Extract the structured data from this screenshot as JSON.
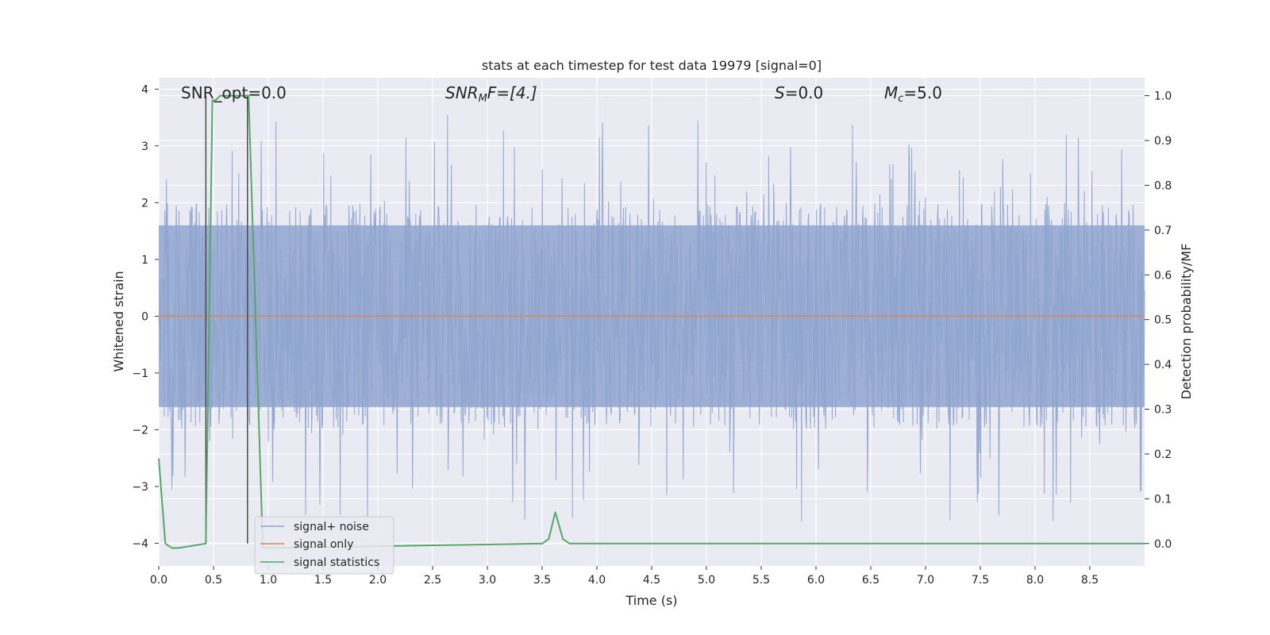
{
  "chart_data": {
    "type": "line",
    "title": "stats at each timestep for test data 19979 [signal=0]",
    "xlabel": "Time (s)",
    "ylabel_left": "Whitened strain",
    "ylabel_right": "Detection probability/MF",
    "xlim": [
      0.0,
      9.0
    ],
    "ylim_left": [
      -4.4,
      4.2
    ],
    "ylim_right": [
      -0.05,
      1.04
    ],
    "x_ticks": [
      "0.0",
      "0.5",
      "1.0",
      "1.5",
      "2.0",
      "2.5",
      "3.0",
      "3.5",
      "4.0",
      "4.5",
      "5.0",
      "5.5",
      "6.0",
      "6.5",
      "7.0",
      "7.5",
      "8.0",
      "8.5"
    ],
    "y_left_ticks": [
      "4",
      "3",
      "2",
      "1",
      "0",
      "−1",
      "−2",
      "−3",
      "−4"
    ],
    "y_right_ticks": [
      "1.0",
      "0.9",
      "0.8",
      "0.7",
      "0.6",
      "0.5",
      "0.4",
      "0.3",
      "0.2",
      "0.1",
      "0.0"
    ],
    "grid": true,
    "annotations": [
      {
        "prefix": "SNR_opt=0.0",
        "main": "",
        "sub": "",
        "suffix": ""
      },
      {
        "prefix": "",
        "main": "SNR",
        "sub": "M",
        "suffix": "F=[4.]"
      },
      {
        "prefix": "",
        "main": "S",
        "sub": "",
        "suffix": "=0.0"
      },
      {
        "prefix": "",
        "main": "M",
        "sub": "c",
        "suffix": "=5.0"
      }
    ],
    "legend_position": "lower-left",
    "series": [
      {
        "name": "signal+ noise",
        "color": "#8fa5cf",
        "axis": "left",
        "style": "noise",
        "band": [
          -1.6,
          1.6
        ],
        "extremes": [
          -4.0,
          3.8
        ]
      },
      {
        "name": "signal only",
        "color": "#dd8452",
        "axis": "left",
        "x": [
          0.0,
          9.0
        ],
        "y": [
          0.0,
          0.0
        ]
      },
      {
        "name": "signal statistics",
        "color": "#55a868",
        "axis": "right",
        "x": [
          0.0,
          0.06,
          0.12,
          0.18,
          0.43,
          0.49,
          0.52,
          0.56,
          0.82,
          0.95,
          1.0,
          3.5,
          3.56,
          3.62,
          3.69,
          3.75,
          9.0
        ],
        "y": [
          0.19,
          0.0,
          -0.01,
          -0.01,
          0.0,
          0.99,
          0.99,
          1.0,
          1.0,
          -0.01,
          -0.01,
          0.0,
          0.01,
          0.07,
          0.01,
          0.0,
          0.0
        ]
      }
    ],
    "markers": {
      "color": "#4a4a4a",
      "x": [
        0.43,
        0.81
      ]
    }
  }
}
